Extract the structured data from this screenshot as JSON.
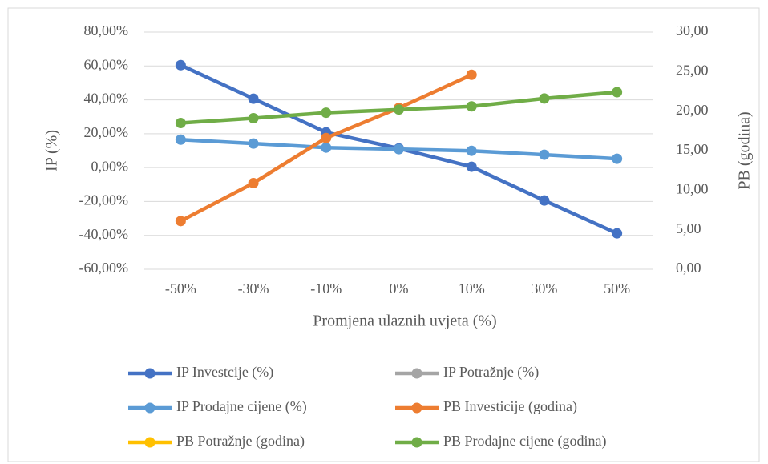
{
  "chart_data": {
    "type": "line",
    "x_label": "Promjena ulaznih uvjeta (%)",
    "y_label": "IP (%)",
    "y2_label": "PB (godina)",
    "categories": [
      "-50%",
      "-30%",
      "-10%",
      "0%",
      "10%",
      "30%",
      "50%"
    ],
    "ylim": [
      -60,
      80
    ],
    "yticks": [
      {
        "value": -60,
        "label": "-60,00%"
      },
      {
        "value": -40,
        "label": "-40,00%"
      },
      {
        "value": -20,
        "label": "-20,00%"
      },
      {
        "value": 0,
        "label": "0,00%"
      },
      {
        "value": 20,
        "label": "20,00%"
      },
      {
        "value": 40,
        "label": "40,00%"
      },
      {
        "value": 60,
        "label": "60,00%"
      },
      {
        "value": 80,
        "label": "80,00%"
      }
    ],
    "y2lim": [
      0,
      30
    ],
    "y2ticks": [
      {
        "value": 0,
        "label": "0,00"
      },
      {
        "value": 5,
        "label": "5,00"
      },
      {
        "value": 10,
        "label": "10,00"
      },
      {
        "value": 15,
        "label": "15,00"
      },
      {
        "value": 20,
        "label": "20,00"
      },
      {
        "value": 25,
        "label": "25,00"
      },
      {
        "value": 30,
        "label": "30,00"
      }
    ],
    "grid": true,
    "legend": "bottom",
    "series": [
      {
        "name": "IP Investcije (%)",
        "color": "#4472c4",
        "values": [
          60.5,
          40.7,
          20.8,
          11.3,
          0.5,
          -19.4,
          -38.8
        ]
      },
      {
        "name": "IP Potražnje (%)",
        "color": "#a5a5a5",
        "values": [
          null,
          null,
          null,
          null,
          null,
          null,
          null
        ]
      },
      {
        "name": "IP Prodajne cijene (%)",
        "color": "#5b9bd5",
        "values": [
          16.5,
          14.2,
          11.8,
          10.9,
          9.9,
          7.6,
          5.2
        ]
      },
      {
        "name": "PB Investicije (godina)",
        "color": "#ed7d31",
        "axis": "y2",
        "values": [
          6.1,
          10.9,
          16.6,
          20.4,
          24.6,
          null,
          null
        ]
      },
      {
        "name": "PB Potražnje (godina)",
        "color": "#ffc000",
        "axis": "y2",
        "values": [
          null,
          null,
          null,
          null,
          null,
          null,
          null
        ]
      },
      {
        "name": "PB Prodajne cijene (godina)",
        "color": "#70ad47",
        "axis": "y2",
        "values": [
          18.5,
          19.1,
          19.8,
          20.2,
          20.6,
          21.6,
          22.4
        ]
      }
    ]
  }
}
